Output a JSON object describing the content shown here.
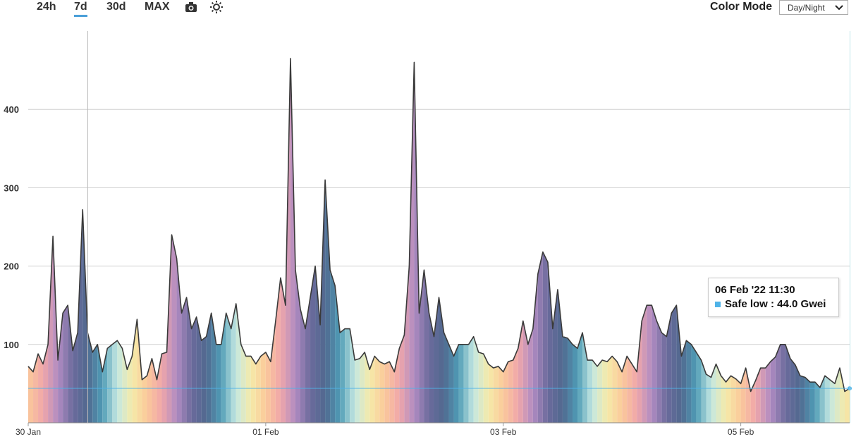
{
  "toolbar": {
    "buttons": [
      "24h",
      "7d",
      "30d",
      "MAX"
    ],
    "active": 1,
    "color_mode_label": "Color Mode",
    "color_mode_value": "Day/Night"
  },
  "tooltip": {
    "title": "06 Feb '22 11:30",
    "text": "Safe low : 44.0 Gwei",
    "color": "#4fb3e8"
  },
  "chart_data": {
    "type": "area",
    "grid": true,
    "xlim": [
      0,
      166
    ],
    "ylim": [
      0,
      500
    ],
    "xticks": [
      {
        "value": 0,
        "label": "30 Jan"
      },
      {
        "value": 48,
        "label": "01 Feb"
      },
      {
        "value": 96,
        "label": "03 Feb"
      },
      {
        "value": 144,
        "label": "05 Feb"
      }
    ],
    "yticks": [
      100,
      200,
      300,
      400
    ],
    "day_night_colors": [
      "#fbc99a",
      "#f0a6aa",
      "#b08cc2",
      "#6b6a9c",
      "#50698f",
      "#4f9db6",
      "#c4e7e2",
      "#f5eaa8"
    ],
    "x": [
      0,
      1,
      2,
      3,
      4,
      5,
      6,
      7,
      8,
      9,
      10,
      11,
      12,
      13,
      14,
      15,
      16,
      17,
      18,
      19,
      20,
      21,
      22,
      23,
      24,
      25,
      26,
      27,
      28,
      29,
      30,
      31,
      32,
      33,
      34,
      35,
      36,
      37,
      38,
      39,
      40,
      41,
      42,
      43,
      44,
      45,
      46,
      47,
      48,
      49,
      50,
      51,
      52,
      53,
      54,
      55,
      56,
      57,
      58,
      59,
      60,
      61,
      62,
      63,
      64,
      65,
      66,
      67,
      68,
      69,
      70,
      71,
      72,
      73,
      74,
      75,
      76,
      77,
      78,
      79,
      80,
      81,
      82,
      83,
      84,
      85,
      86,
      87,
      88,
      89,
      90,
      91,
      92,
      93,
      94,
      95,
      96,
      97,
      98,
      99,
      100,
      101,
      102,
      103,
      104,
      105,
      106,
      107,
      108,
      109,
      110,
      111,
      112,
      113,
      114,
      115,
      116,
      117,
      118,
      119,
      120,
      121,
      122,
      123,
      124,
      125,
      126,
      127,
      128,
      129,
      130,
      131,
      132,
      133,
      134,
      135,
      136,
      137,
      138,
      139,
      140,
      141,
      142,
      143,
      144,
      145,
      146,
      147,
      148,
      149,
      150,
      151,
      152,
      153,
      154,
      155,
      156,
      157,
      158,
      159,
      160,
      161,
      162,
      163,
      164,
      165,
      166
    ],
    "series": [
      {
        "name": "Safe low",
        "color": "#3a3a3a",
        "values": [
          72,
          65,
          88,
          75,
          100,
          238,
          80,
          140,
          150,
          92,
          115,
          272,
          115,
          90,
          100,
          65,
          95,
          100,
          105,
          95,
          68,
          85,
          132,
          55,
          60,
          82,
          55,
          88,
          90,
          240,
          210,
          140,
          160,
          120,
          135,
          105,
          110,
          140,
          100,
          100,
          140,
          120,
          152,
          100,
          85,
          85,
          75,
          85,
          90,
          78,
          130,
          185,
          150,
          465,
          195,
          145,
          120,
          160,
          200,
          125,
          310,
          195,
          175,
          115,
          120,
          120,
          80,
          82,
          90,
          68,
          85,
          78,
          75,
          78,
          65,
          95,
          112,
          200,
          460,
          140,
          195,
          140,
          110,
          160,
          115,
          100,
          85,
          100,
          100,
          100,
          110,
          90,
          88,
          75,
          70,
          72,
          65,
          78,
          80,
          95,
          130,
          100,
          120,
          190,
          218,
          205,
          120,
          170,
          110,
          108,
          100,
          95,
          115,
          80,
          80,
          72,
          80,
          78,
          85,
          78,
          65,
          85,
          75,
          65,
          130,
          150,
          150,
          130,
          115,
          110,
          140,
          150,
          85,
          105,
          100,
          90,
          80,
          62,
          58,
          75,
          60,
          52,
          60,
          56,
          50,
          70,
          40,
          54,
          70,
          70,
          78,
          84,
          100,
          100,
          82,
          74,
          60,
          58,
          52,
          52,
          45,
          60,
          55,
          50,
          70,
          40,
          44
        ]
      }
    ]
  }
}
